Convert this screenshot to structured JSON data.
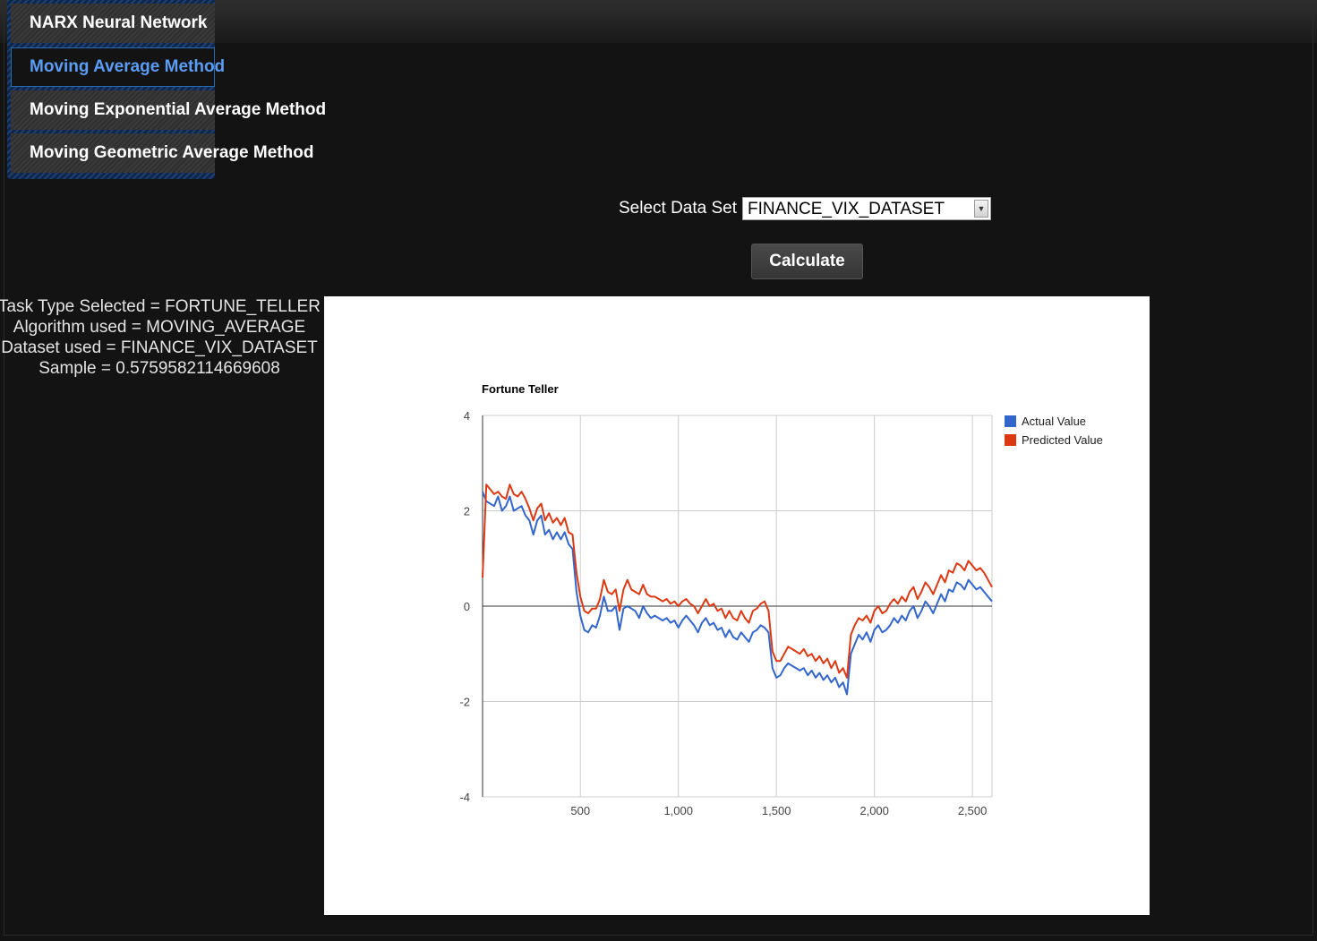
{
  "menu": {
    "items": [
      {
        "label": "NARX Neural Network"
      },
      {
        "label": "Moving Average Method"
      },
      {
        "label": "Moving Exponential Average Method"
      },
      {
        "label": "Moving Geometric Average Method"
      }
    ],
    "active_index": 1
  },
  "dataset": {
    "label": "Select Data Set",
    "selected": "FINANCE_VIX_DATASET"
  },
  "calculate_label": "Calculate",
  "info": {
    "task_type": "Task Type Selected = FORTUNE_TELLER",
    "algorithm": "Algorithm used = MOVING_AVERAGE",
    "dataset": "Dataset used = FINANCE_VIX_DATASET",
    "sample": "Sample = 0.5759582114669608"
  },
  "colors": {
    "actual": "#3366cc",
    "predicted": "#dc3912",
    "active_menu": "#5b9cf5"
  },
  "chart_data": {
    "type": "line",
    "title": "Fortune Teller",
    "xlim": [
      1,
      2600
    ],
    "ylim": [
      -4,
      4
    ],
    "x_ticks": [
      500,
      1000,
      1500,
      2000,
      2500
    ],
    "x_tick_labels": [
      "500",
      "1,000",
      "1,500",
      "2,000",
      "2,500"
    ],
    "y_ticks": [
      4,
      2,
      0,
      -2,
      -4
    ],
    "y_tick_labels": [
      "4",
      "2",
      "0",
      "-2",
      "-4"
    ],
    "grid": true,
    "legend": "right",
    "x": [
      1,
      20,
      40,
      60,
      80,
      100,
      120,
      140,
      160,
      180,
      200,
      220,
      240,
      260,
      280,
      300,
      320,
      340,
      360,
      380,
      400,
      420,
      440,
      460,
      480,
      500,
      520,
      540,
      560,
      580,
      600,
      620,
      640,
      660,
      680,
      700,
      720,
      740,
      760,
      780,
      800,
      820,
      840,
      860,
      880,
      900,
      920,
      940,
      960,
      980,
      1000,
      1020,
      1040,
      1060,
      1080,
      1100,
      1120,
      1140,
      1160,
      1180,
      1200,
      1220,
      1240,
      1260,
      1280,
      1300,
      1320,
      1340,
      1360,
      1380,
      1400,
      1420,
      1440,
      1460,
      1480,
      1500,
      1520,
      1540,
      1560,
      1580,
      1600,
      1620,
      1640,
      1660,
      1680,
      1700,
      1720,
      1740,
      1760,
      1780,
      1800,
      1820,
      1840,
      1860,
      1880,
      1900,
      1920,
      1940,
      1960,
      1980,
      2000,
      2020,
      2040,
      2060,
      2080,
      2100,
      2120,
      2140,
      2160,
      2180,
      2200,
      2220,
      2240,
      2260,
      2280,
      2300,
      2320,
      2340,
      2360,
      2380,
      2400,
      2420,
      2440,
      2460,
      2480,
      2500,
      2520,
      2540,
      2560,
      2580,
      2600
    ],
    "series": [
      {
        "name": "Actual Value",
        "values": [
          2.4,
          2.2,
          2.15,
          2.1,
          2.3,
          2.0,
          2.1,
          2.3,
          2.0,
          2.05,
          2.1,
          1.9,
          1.8,
          1.5,
          1.8,
          1.9,
          1.5,
          1.6,
          1.4,
          1.55,
          1.4,
          1.55,
          1.3,
          1.2,
          0.3,
          -0.2,
          -0.5,
          -0.55,
          -0.4,
          -0.45,
          -0.2,
          0.2,
          -0.1,
          -0.1,
          0.0,
          -0.5,
          -0.05,
          0.0,
          -0.05,
          -0.1,
          -0.25,
          0.0,
          -0.15,
          -0.25,
          -0.2,
          -0.25,
          -0.3,
          -0.25,
          -0.35,
          -0.3,
          -0.45,
          -0.3,
          -0.2,
          -0.3,
          -0.4,
          -0.55,
          -0.35,
          -0.25,
          -0.4,
          -0.35,
          -0.5,
          -0.45,
          -0.65,
          -0.5,
          -0.65,
          -0.7,
          -0.55,
          -0.65,
          -0.75,
          -0.55,
          -0.5,
          -0.4,
          -0.45,
          -0.55,
          -1.3,
          -1.5,
          -1.45,
          -1.3,
          -1.2,
          -1.25,
          -1.3,
          -1.35,
          -1.3,
          -1.45,
          -1.35,
          -1.5,
          -1.4,
          -1.55,
          -1.45,
          -1.6,
          -1.5,
          -1.7,
          -1.6,
          -1.85,
          -1.0,
          -0.8,
          -0.6,
          -0.7,
          -0.55,
          -0.75,
          -0.5,
          -0.4,
          -0.55,
          -0.5,
          -0.4,
          -0.25,
          -0.35,
          -0.2,
          -0.3,
          -0.1,
          0.0,
          -0.25,
          -0.1,
          0.1,
          0.0,
          -0.15,
          0.05,
          0.25,
          0.1,
          0.35,
          0.3,
          0.5,
          0.45,
          0.35,
          0.55,
          0.45,
          0.35,
          0.4,
          0.3,
          0.2,
          0.1
        ]
      },
      {
        "name": "Predicted Value",
        "values": [
          0.6,
          2.55,
          2.45,
          2.35,
          2.4,
          2.3,
          2.25,
          2.55,
          2.35,
          2.3,
          2.4,
          2.25,
          2.05,
          1.8,
          2.05,
          2.15,
          1.8,
          1.95,
          1.75,
          1.85,
          1.7,
          1.85,
          1.55,
          1.5,
          0.7,
          0.2,
          -0.1,
          -0.15,
          -0.05,
          -0.05,
          0.15,
          0.55,
          0.3,
          0.25,
          0.35,
          -0.1,
          0.35,
          0.55,
          0.35,
          0.3,
          0.25,
          0.45,
          0.25,
          0.2,
          0.2,
          0.15,
          0.1,
          0.15,
          0.05,
          0.1,
          0.0,
          0.1,
          0.15,
          0.05,
          0.0,
          -0.15,
          0.0,
          0.15,
          0.0,
          0.05,
          -0.1,
          -0.05,
          -0.25,
          -0.1,
          -0.25,
          -0.3,
          -0.1,
          -0.25,
          -0.35,
          -0.1,
          -0.05,
          0.05,
          0.1,
          -0.1,
          -0.95,
          -1.15,
          -1.15,
          -1.0,
          -0.85,
          -0.9,
          -0.95,
          -1.0,
          -0.9,
          -1.05,
          -1.0,
          -1.15,
          -1.05,
          -1.2,
          -1.1,
          -1.3,
          -1.15,
          -1.4,
          -1.3,
          -1.5,
          -0.6,
          -0.4,
          -0.25,
          -0.3,
          -0.2,
          -0.35,
          -0.1,
          0.0,
          -0.15,
          -0.1,
          0.05,
          0.15,
          0.05,
          0.2,
          0.1,
          0.3,
          0.4,
          0.15,
          0.3,
          0.5,
          0.4,
          0.25,
          0.45,
          0.65,
          0.5,
          0.75,
          0.7,
          0.9,
          0.85,
          0.75,
          0.95,
          0.85,
          0.75,
          0.8,
          0.7,
          0.55,
          0.4
        ]
      }
    ]
  }
}
